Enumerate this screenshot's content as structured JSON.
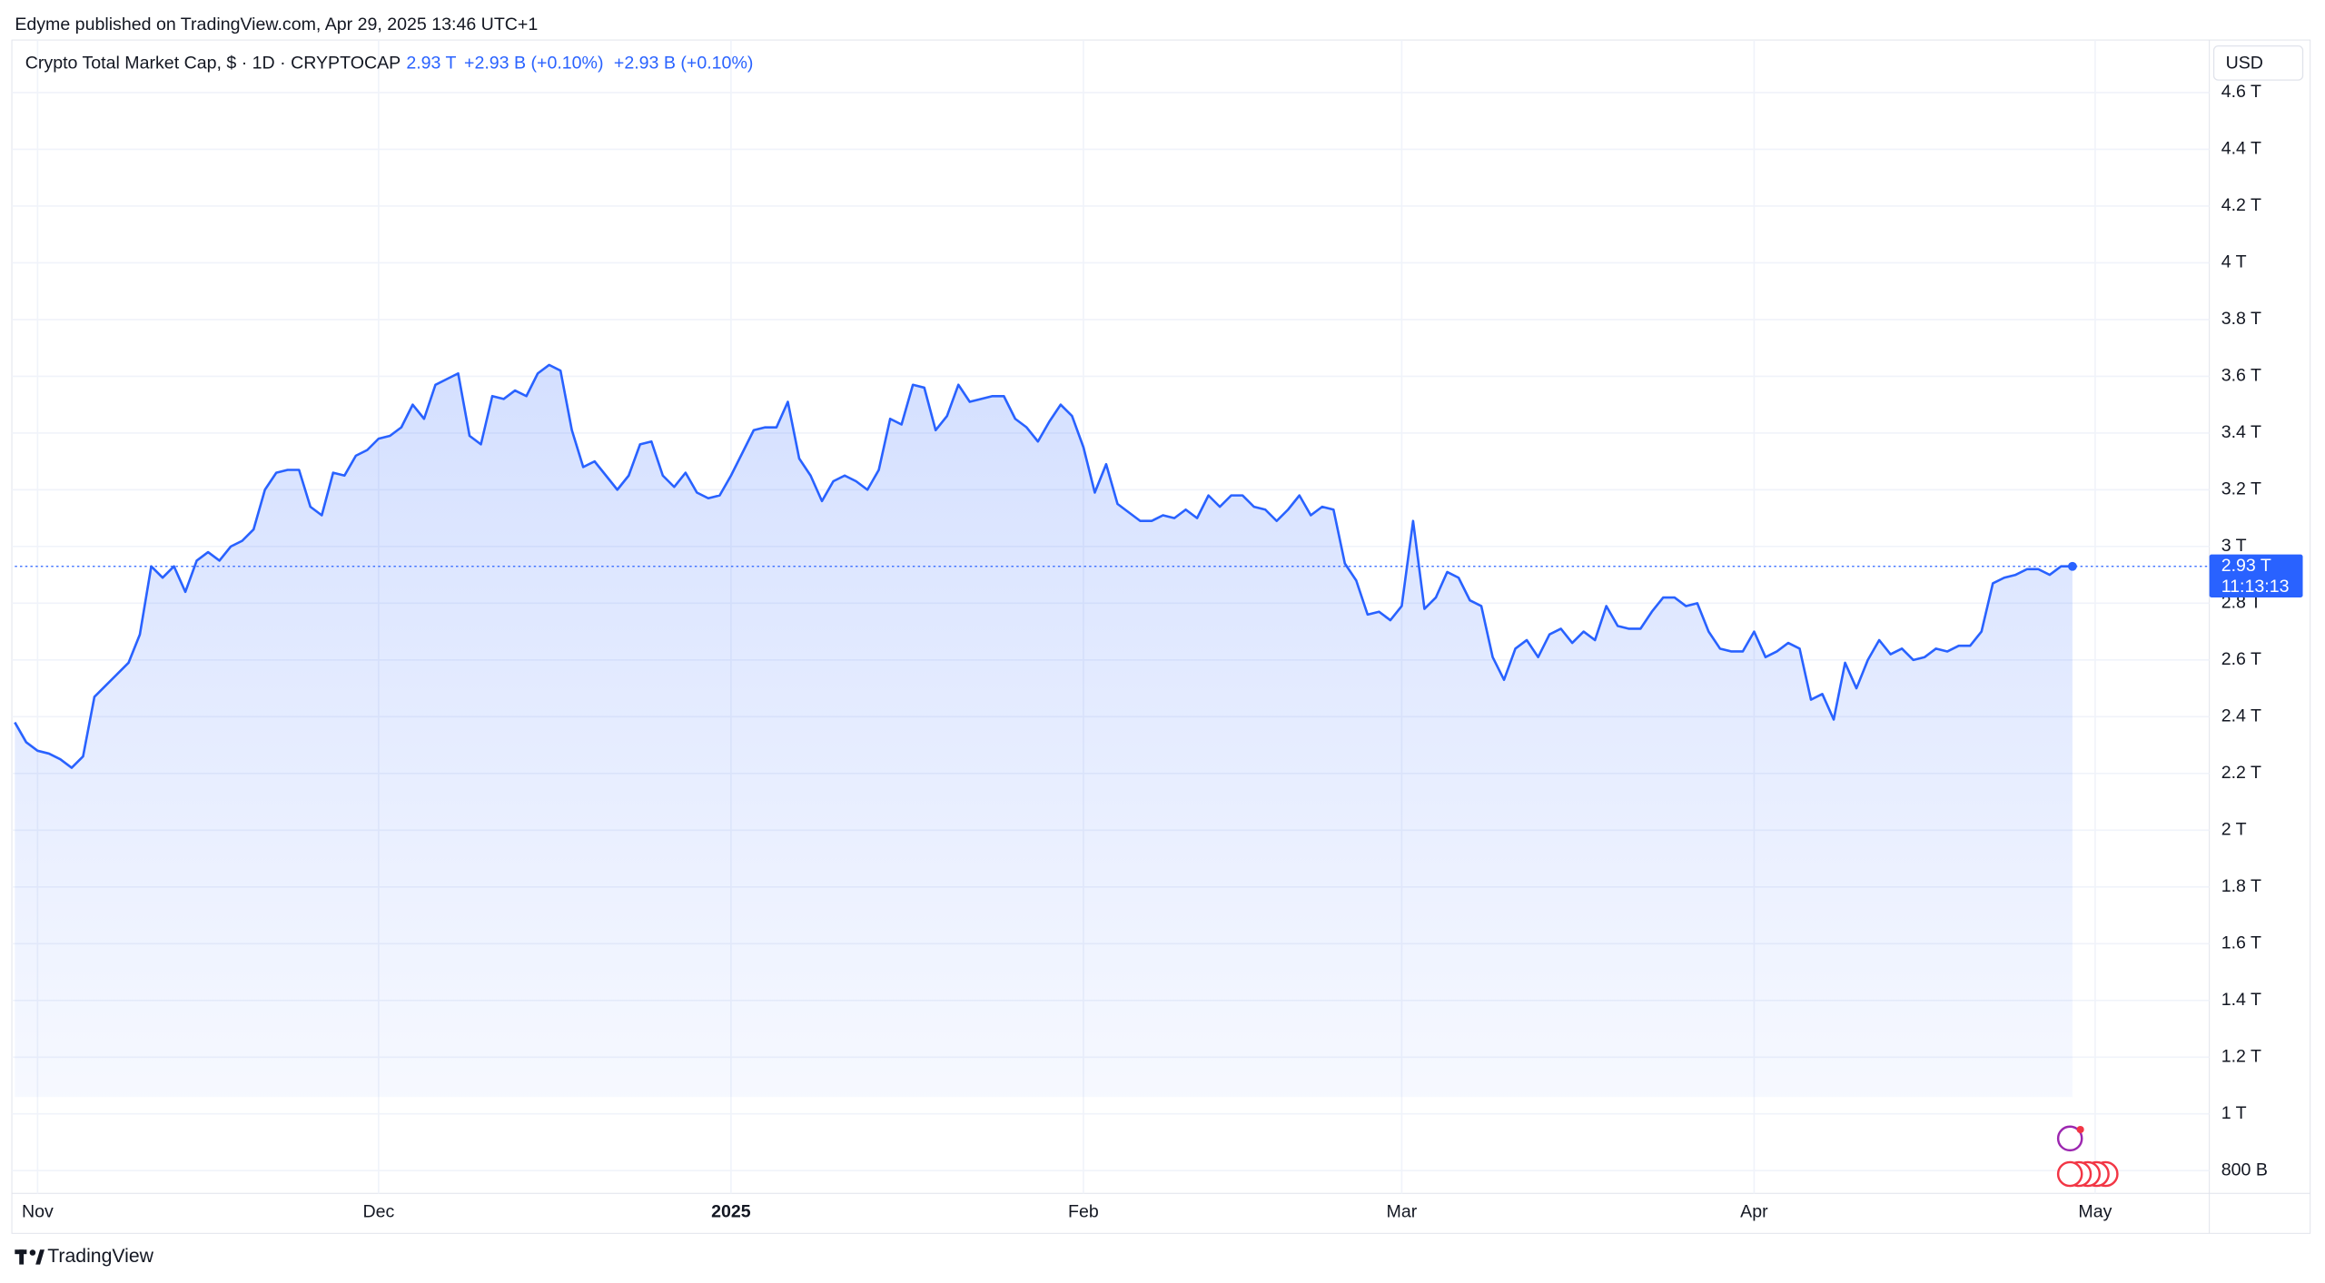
{
  "header": {
    "publisher": "Edyme published on TradingView.com, Apr 29, 2025 13:46 UTC+1"
  },
  "footer": {
    "brand": "TradingView"
  },
  "chart_data": {
    "type": "area",
    "title": "Crypto Total Market Cap, $ · 1D · CRYPTOCAP",
    "legend_values": [
      "2.93 T",
      "+2.93 B (+0.10%)",
      "+2.93 B (+0.10%)"
    ],
    "currency": "USD",
    "last_price_label": "2.93 T",
    "countdown": "11:13:13",
    "color": "#2962ff",
    "grid": true,
    "categories": [
      null,
      null,
      "Nov",
      null,
      null,
      null,
      null,
      null,
      null,
      null,
      null,
      null,
      null,
      null,
      null,
      null,
      null,
      null,
      null,
      null,
      null,
      null,
      null,
      null,
      null,
      null,
      null,
      null,
      null,
      null,
      null,
      null,
      "Dec",
      null,
      null,
      null,
      null,
      null,
      null,
      null,
      null,
      null,
      null,
      null,
      null,
      null,
      null,
      null,
      null,
      null,
      null,
      null,
      null,
      null,
      null,
      null,
      null,
      null,
      null,
      null,
      null,
      null,
      null,
      "2025",
      null,
      null,
      null,
      null,
      null,
      null,
      null,
      null,
      null,
      null,
      null,
      null,
      null,
      null,
      null,
      null,
      null,
      null,
      null,
      null,
      null,
      null,
      null,
      null,
      null,
      null,
      null,
      null,
      null,
      null,
      "Feb",
      null,
      null,
      null,
      null,
      null,
      null,
      null,
      null,
      null,
      null,
      null,
      null,
      null,
      null,
      null,
      null,
      null,
      null,
      null,
      null,
      null,
      null,
      null,
      null,
      null,
      null,
      null,
      "Mar",
      null,
      null,
      null,
      null,
      null,
      null,
      null,
      null,
      null,
      null,
      null,
      null,
      null,
      null,
      null,
      null,
      null,
      null,
      null,
      null,
      null,
      null,
      null,
      null,
      null,
      null,
      null,
      null,
      null,
      null,
      "Apr",
      null,
      null,
      null,
      null,
      null,
      null,
      null,
      null,
      null,
      null,
      null,
      null,
      null,
      null,
      null,
      null,
      null,
      null,
      null,
      null,
      null,
      null,
      null,
      null,
      null,
      null,
      null,
      null,
      null,
      "May",
      null,
      null,
      null,
      null,
      null,
      null,
      null,
      null,
      null
    ],
    "values": [
      2.38,
      2.31,
      2.28,
      2.27,
      2.25,
      2.22,
      2.26,
      2.47,
      2.51,
      2.55,
      2.59,
      2.69,
      2.93,
      2.89,
      2.93,
      2.84,
      2.95,
      2.98,
      2.95,
      3.0,
      3.02,
      3.06,
      3.2,
      3.26,
      3.27,
      3.27,
      3.14,
      3.11,
      3.26,
      3.25,
      3.32,
      3.34,
      3.38,
      3.39,
      3.42,
      3.5,
      3.45,
      3.57,
      3.59,
      3.61,
      3.39,
      3.36,
      3.53,
      3.52,
      3.55,
      3.53,
      3.61,
      3.64,
      3.62,
      3.41,
      3.28,
      3.3,
      3.25,
      3.2,
      3.25,
      3.36,
      3.37,
      3.25,
      3.21,
      3.26,
      3.19,
      3.17,
      3.18,
      3.25,
      3.33,
      3.41,
      3.42,
      3.42,
      3.51,
      3.31,
      3.25,
      3.16,
      3.23,
      3.25,
      3.23,
      3.2,
      3.27,
      3.45,
      3.43,
      3.57,
      3.56,
      3.41,
      3.46,
      3.57,
      3.51,
      3.52,
      3.53,
      3.53,
      3.45,
      3.42,
      3.37,
      3.44,
      3.5,
      3.46,
      3.35,
      3.19,
      3.29,
      3.15,
      3.12,
      3.09,
      3.09,
      3.11,
      3.1,
      3.13,
      3.1,
      3.18,
      3.14,
      3.18,
      3.18,
      3.14,
      3.13,
      3.09,
      3.13,
      3.18,
      3.11,
      3.14,
      3.13,
      2.94,
      2.88,
      2.76,
      2.77,
      2.74,
      2.79,
      3.09,
      2.78,
      2.82,
      2.91,
      2.89,
      2.81,
      2.79,
      2.61,
      2.53,
      2.64,
      2.67,
      2.61,
      2.69,
      2.71,
      2.66,
      2.7,
      2.67,
      2.79,
      2.72,
      2.71,
      2.71,
      2.77,
      2.82,
      2.82,
      2.79,
      2.8,
      2.7,
      2.64,
      2.63,
      2.63,
      2.7,
      2.61,
      2.63,
      2.66,
      2.64,
      2.46,
      2.48,
      2.39,
      2.59,
      2.5,
      2.6,
      2.67,
      2.62,
      2.64,
      2.6,
      2.61,
      2.64,
      2.63,
      2.65,
      2.65,
      2.7,
      2.87,
      2.89,
      2.9,
      2.92,
      2.92,
      2.9,
      2.93,
      2.93,
      null,
      null,
      null,
      null,
      null,
      null,
      null,
      null,
      null,
      null,
      null
    ],
    "ylim": [
      0.72,
      4.78
    ],
    "yticks": [
      {
        "value": 0.8,
        "label": "800 B"
      },
      {
        "value": 1,
        "label": "1 T"
      },
      {
        "value": 1.2,
        "label": "1.2 T"
      },
      {
        "value": 1.4,
        "label": "1.4 T"
      },
      {
        "value": 1.6,
        "label": "1.6 T"
      },
      {
        "value": 1.8,
        "label": "1.8 T"
      },
      {
        "value": 2,
        "label": "2 T"
      },
      {
        "value": 2.2,
        "label": "2.2 T"
      },
      {
        "value": 2.4,
        "label": "2.4 T"
      },
      {
        "value": 2.6,
        "label": "2.6 T"
      },
      {
        "value": 2.8,
        "label": "2.8 T"
      },
      {
        "value": 3,
        "label": "3 T"
      },
      {
        "value": 3.2,
        "label": "3.2 T"
      },
      {
        "value": 3.4,
        "label": "3.4 T"
      },
      {
        "value": 3.6,
        "label": "3.6 T"
      },
      {
        "value": 3.8,
        "label": "3.8 T"
      },
      {
        "value": 4,
        "label": "4 T"
      },
      {
        "value": 4.2,
        "label": "4.2 T"
      },
      {
        "value": 4.4,
        "label": "4.4 T"
      },
      {
        "value": 4.6,
        "label": "4.6 T"
      }
    ]
  }
}
